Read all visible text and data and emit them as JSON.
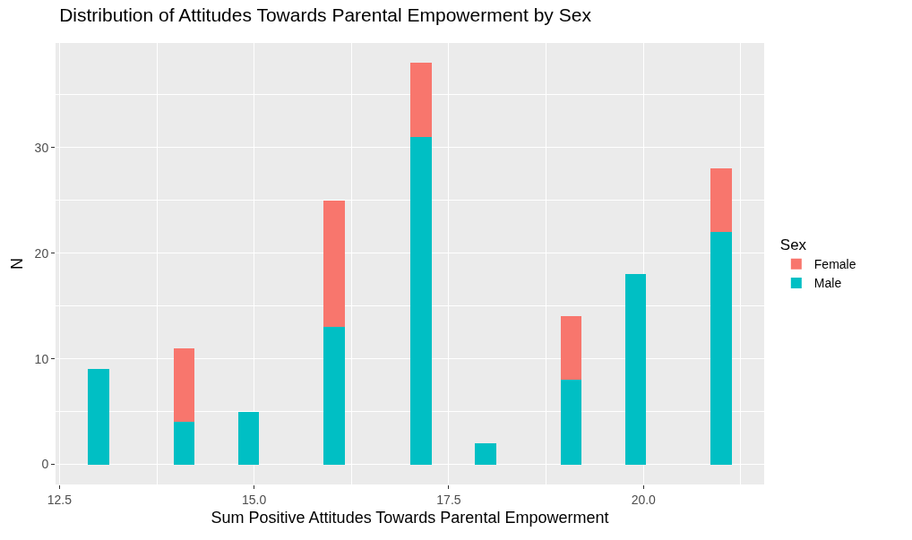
{
  "chart_data": {
    "type": "bar",
    "title": "Distribution of Attitudes Towards Parental Empowerment by Sex",
    "xlabel": "Sum Positive Attitudes Towards Parental Empowerment",
    "ylabel": "N",
    "legend_title": "Sex",
    "x": [
      13.0,
      14.1,
      14.93,
      16.03,
      17.14,
      17.97,
      19.07,
      19.9,
      21.0
    ],
    "stacked": true,
    "series": [
      {
        "name": "Male",
        "color": "#00bfc4",
        "values": [
          9,
          4,
          5,
          13,
          31,
          2,
          8,
          18,
          22
        ]
      },
      {
        "name": "Female",
        "color": "#f8766d",
        "values": [
          null,
          7,
          null,
          12,
          7,
          null,
          6,
          null,
          6
        ]
      }
    ],
    "xlim": [
      12.45,
      21.55
    ],
    "xticks": [
      {
        "value": 12.5,
        "label": "12.5"
      },
      {
        "value": 15.0,
        "label": "15.0"
      },
      {
        "value": 17.5,
        "label": "17.5"
      },
      {
        "value": 20.0,
        "label": "20.0"
      }
    ],
    "ylim": [
      -1.9,
      39.9
    ],
    "yticks": [
      0,
      10,
      20,
      30
    ],
    "grid": true,
    "legend": "right"
  }
}
